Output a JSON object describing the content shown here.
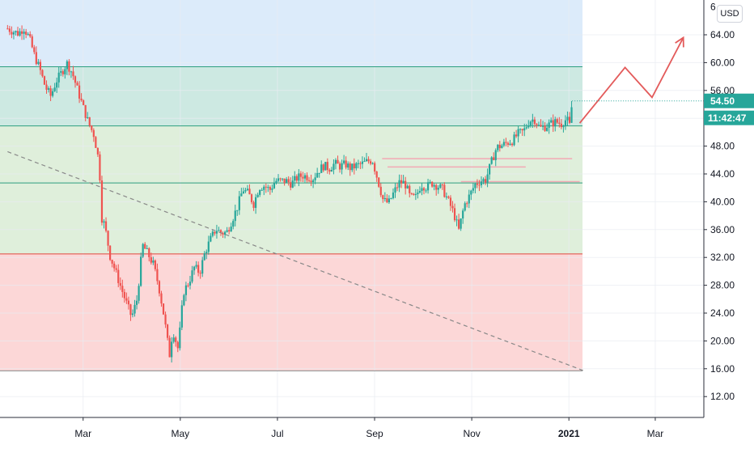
{
  "currency_label": "USD",
  "price_tag": {
    "price": "54.50",
    "countdown": "11:42:47",
    "color": "#26a69a"
  },
  "colors": {
    "candle_up": "#26a69a",
    "candle_down": "#ef5350",
    "zone_blue": "#dcebfa",
    "zone_teal": "#cde9e2",
    "zone_green": "#dfefdb",
    "zone_red": "#fcd7d7",
    "level_teal": "#2e9e7f",
    "level_red": "#e0473f",
    "projection": "#e35b5b",
    "trendline": "#888888"
  },
  "chart_data": {
    "type": "candlestick",
    "y_axis": {
      "range": [
        9,
        69
      ],
      "ticks": [
        64,
        60,
        56,
        52,
        48,
        44,
        40,
        36,
        32,
        28,
        24,
        20,
        16,
        12
      ],
      "tick_labels": [
        "64.00",
        "60.00",
        "56.00",
        "52.00",
        "48.00",
        "44.00",
        "40.00",
        "36.00",
        "32.00",
        "28.00",
        "24.00",
        "20.00",
        "16.00",
        "12.00"
      ],
      "partial_top_label": "6"
    },
    "x_axis": {
      "labels": [
        "Mar",
        "May",
        "Jul",
        "Sep",
        "Nov",
        "2021",
        "Mar"
      ],
      "label_weeks": [
        7,
        16,
        25,
        34,
        43,
        52,
        60
      ]
    },
    "zones": [
      {
        "name": "blue",
        "from": 59.4,
        "to": 69,
        "color": "#dcebfa"
      },
      {
        "name": "teal",
        "from": 50.9,
        "to": 59.4,
        "color": "#cde9e2"
      },
      {
        "name": "green",
        "from": 32.5,
        "to": 50.9,
        "color": "#dfefdb"
      },
      {
        "name": "red",
        "from": 15.7,
        "to": 32.5,
        "color": "#fcd7d7"
      }
    ],
    "levels": [
      {
        "price": 59.4,
        "color": "#2e9e7f"
      },
      {
        "price": 50.9,
        "color": "#2e9e7f"
      },
      {
        "price": 42.7,
        "color": "#2e9e7f"
      },
      {
        "price": 32.5,
        "color": "#e0473f"
      },
      {
        "price": 15.7,
        "color": "#8a8a8a"
      }
    ],
    "resistance_segments": [
      {
        "from_week": 34.7,
        "to_week": 52.3,
        "price": 46.2
      },
      {
        "from_week": 35.2,
        "to_week": 48.0,
        "price": 45.0
      },
      {
        "from_week": 42.0,
        "to_week": 53.0,
        "price": 42.9
      }
    ],
    "current_price": 54.5,
    "trendline": {
      "start": [
        0,
        47.2
      ],
      "end": [
        53.4,
        15.7
      ]
    },
    "projection_path": [
      [
        53.0,
        51.3
      ],
      [
        57.2,
        59.3
      ],
      [
        59.7,
        55.0
      ],
      [
        62.6,
        63.6
      ]
    ],
    "week_range": [
      -0.7,
      64.5
    ],
    "close_path": [
      [
        0,
        64.9
      ],
      [
        0.5,
        64.5
      ],
      [
        1,
        64.2
      ],
      [
        1.5,
        65.0
      ],
      [
        2,
        63.6
      ],
      [
        2.5,
        61.0
      ],
      [
        3,
        59.0
      ],
      [
        3.5,
        56.5
      ],
      [
        4,
        55.2
      ],
      [
        4.5,
        57.3
      ],
      [
        5,
        58.6
      ],
      [
        5.5,
        59.9
      ],
      [
        6,
        58.5
      ],
      [
        6.5,
        56.0
      ],
      [
        7,
        53.6
      ],
      [
        7.5,
        51.3
      ],
      [
        8,
        49.6
      ],
      [
        8.5,
        45.5
      ],
      [
        8.7,
        37.8
      ],
      [
        9,
        36.6
      ],
      [
        9.5,
        32.2
      ],
      [
        10,
        30.0
      ],
      [
        10.5,
        27.7
      ],
      [
        11,
        25.5
      ],
      [
        11.5,
        23.4
      ],
      [
        12,
        26.0
      ],
      [
        12.5,
        33.8
      ],
      [
        13,
        32.5
      ],
      [
        13.5,
        31.0
      ],
      [
        14,
        27.9
      ],
      [
        14.5,
        23.5
      ],
      [
        15,
        17.9
      ],
      [
        15.3,
        21.6
      ],
      [
        15.8,
        18.8
      ],
      [
        16.3,
        27.0
      ],
      [
        16.8,
        28.5
      ],
      [
        17.3,
        30.6
      ],
      [
        17.8,
        29.8
      ],
      [
        18.3,
        32.8
      ],
      [
        18.8,
        34.6
      ],
      [
        19.3,
        36.1
      ],
      [
        19.8,
        35.5
      ],
      [
        20.3,
        35.6
      ],
      [
        20.8,
        37.4
      ],
      [
        21.3,
        39.3
      ],
      [
        21.8,
        41.8
      ],
      [
        22.3,
        41.2
      ],
      [
        22.8,
        39.7
      ],
      [
        23.3,
        42.1
      ],
      [
        23.8,
        42.3
      ],
      [
        24.3,
        41.7
      ],
      [
        24.8,
        43.0
      ],
      [
        25.3,
        43.0
      ],
      [
        25.8,
        43.0
      ],
      [
        26.3,
        42.6
      ],
      [
        26.8,
        43.4
      ],
      [
        27.3,
        43.8
      ],
      [
        27.8,
        43.6
      ],
      [
        28.3,
        43.4
      ],
      [
        28.8,
        44.5
      ],
      [
        29.3,
        45.2
      ],
      [
        29.8,
        44.8
      ],
      [
        30.3,
        45.5
      ],
      [
        30.8,
        45.1
      ],
      [
        31.3,
        45.4
      ],
      [
        31.8,
        44.8
      ],
      [
        32.3,
        45.2
      ],
      [
        32.8,
        45.4
      ],
      [
        33.3,
        45.8
      ],
      [
        33.8,
        46.0
      ],
      [
        34.3,
        43.1
      ],
      [
        34.8,
        40.2
      ],
      [
        35.3,
        39.8
      ],
      [
        35.8,
        41.4
      ],
      [
        36.3,
        42.8
      ],
      [
        36.8,
        42.7
      ],
      [
        37.3,
        40.6
      ],
      [
        37.8,
        40.6
      ],
      [
        38.3,
        42.5
      ],
      [
        38.8,
        42.1
      ],
      [
        39.3,
        42.7
      ],
      [
        39.8,
        42.3
      ],
      [
        40.3,
        41.8
      ],
      [
        40.8,
        40.2
      ],
      [
        41.3,
        38.5
      ],
      [
        41.8,
        35.9
      ],
      [
        42.3,
        39.5
      ],
      [
        42.8,
        40.9
      ],
      [
        43.3,
        42.5
      ],
      [
        43.8,
        43.0
      ],
      [
        44.3,
        43.2
      ],
      [
        44.8,
        45.6
      ],
      [
        45.3,
        47.8
      ],
      [
        45.8,
        48.1
      ],
      [
        46.3,
        48.5
      ],
      [
        46.8,
        48.8
      ],
      [
        47.3,
        49.8
      ],
      [
        47.8,
        50.1
      ],
      [
        48.3,
        51.6
      ],
      [
        48.8,
        51.9
      ],
      [
        49.3,
        50.6
      ],
      [
        49.8,
        50.8
      ],
      [
        50.3,
        51.2
      ],
      [
        50.8,
        51.5
      ],
      [
        51.3,
        51.2
      ],
      [
        51.8,
        51.9
      ],
      [
        52.1,
        50.8
      ],
      [
        52.3,
        54.5
      ]
    ]
  }
}
